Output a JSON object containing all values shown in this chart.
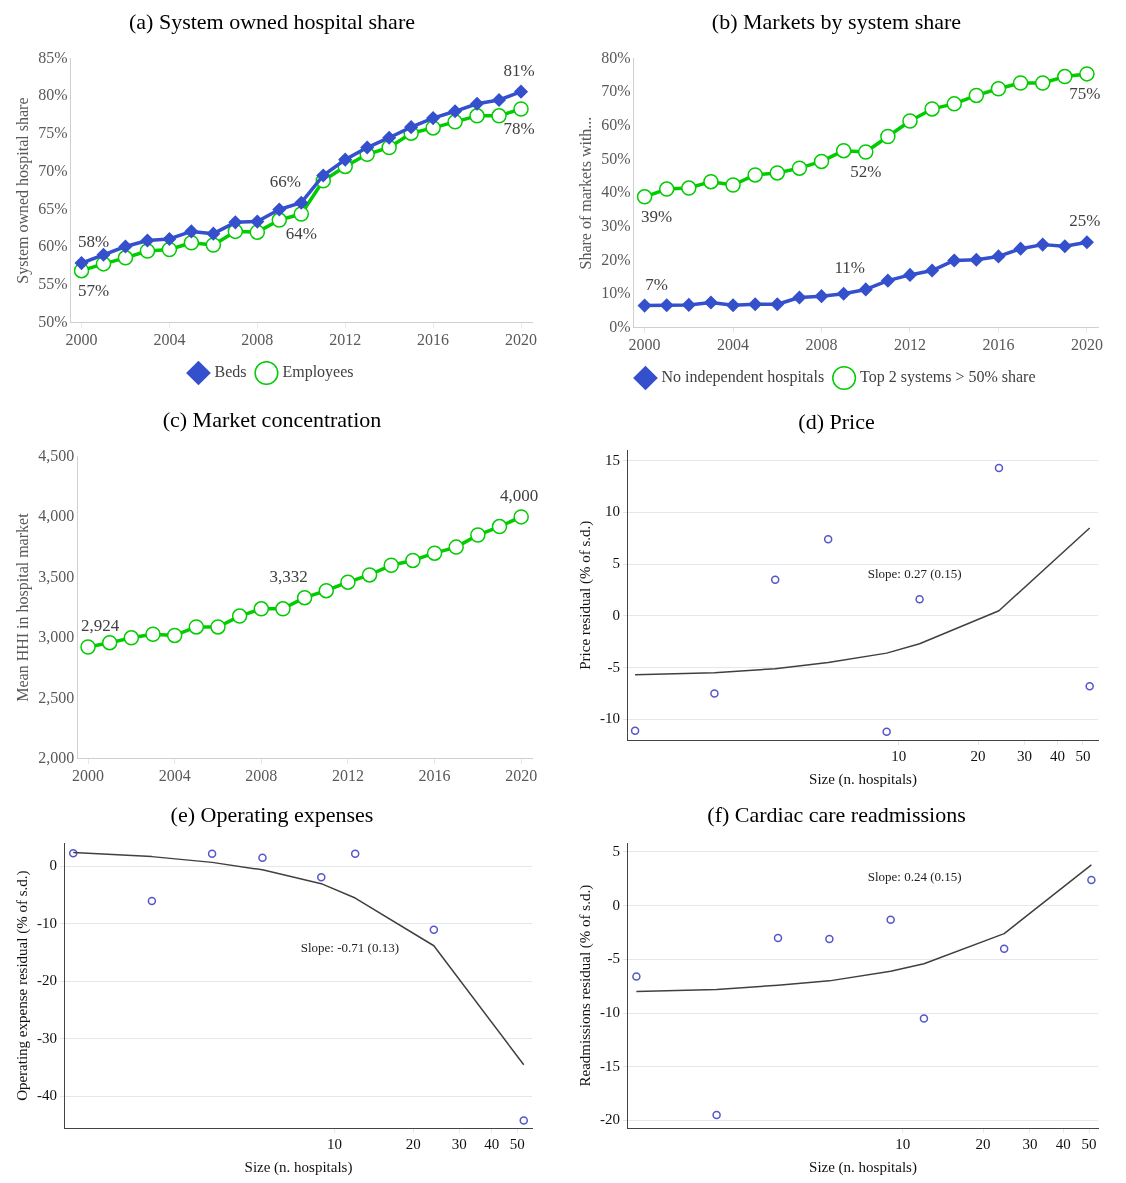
{
  "chart_data": [
    {
      "type": "line",
      "title": "(a) System owned hospital share",
      "ylabel": "System owned hospital share",
      "x": [
        2000,
        2001,
        2002,
        2003,
        2004,
        2005,
        2006,
        2007,
        2008,
        2009,
        2010,
        2011,
        2012,
        2013,
        2014,
        2015,
        2016,
        2017,
        2018,
        2019,
        2020
      ],
      "xlim": [
        1999.5,
        2020.5
      ],
      "xticks": [
        2000,
        2004,
        2008,
        2012,
        2016,
        2020
      ],
      "ylim": [
        50,
        85
      ],
      "yticks": [
        {
          "value": 50,
          "label": "50%"
        },
        {
          "value": 55,
          "label": "55%"
        },
        {
          "value": 60,
          "label": "60%"
        },
        {
          "value": 65,
          "label": "65%"
        },
        {
          "value": 70,
          "label": "70%"
        },
        {
          "value": 75,
          "label": "75%"
        },
        {
          "value": 80,
          "label": "80%"
        },
        {
          "value": 85,
          "label": "85%"
        }
      ],
      "grid": false,
      "legend": "bottom",
      "series": [
        {
          "name": "Beds",
          "color": "#3550cc",
          "marker": "diamond",
          "values": [
            57.9,
            59.0,
            60.1,
            60.9,
            61.1,
            62.1,
            61.8,
            63.3,
            63.4,
            65.0,
            65.9,
            69.5,
            71.6,
            73.2,
            74.5,
            75.9,
            77.1,
            78.0,
            79.0,
            79.5,
            80.6
          ],
          "value_labels": [
            "58%",
            null,
            null,
            null,
            null,
            null,
            null,
            null,
            null,
            null,
            "66%",
            null,
            null,
            null,
            null,
            null,
            null,
            null,
            null,
            null,
            "81%"
          ]
        },
        {
          "name": "Employees",
          "color": "#00cc00",
          "marker": "circle",
          "values": [
            56.9,
            57.8,
            58.6,
            59.5,
            59.7,
            60.6,
            60.3,
            62.1,
            62.0,
            63.6,
            64.4,
            68.8,
            70.7,
            72.3,
            73.2,
            75.1,
            75.8,
            76.6,
            77.4,
            77.4,
            78.3
          ],
          "value_labels": [
            "57%",
            null,
            null,
            null,
            null,
            null,
            null,
            null,
            null,
            null,
            "64%",
            null,
            null,
            null,
            null,
            null,
            null,
            null,
            null,
            null,
            "78%"
          ]
        }
      ]
    },
    {
      "type": "line",
      "title": "(b) Markets by system share",
      "ylabel": "Share of markets with...",
      "x": [
        2000,
        2001,
        2002,
        2003,
        2004,
        2005,
        2006,
        2007,
        2008,
        2009,
        2010,
        2011,
        2012,
        2013,
        2014,
        2015,
        2016,
        2017,
        2018,
        2019,
        2020
      ],
      "xlim": [
        1999.5,
        2020.5
      ],
      "xticks": [
        2000,
        2004,
        2008,
        2012,
        2016,
        2020
      ],
      "ylim": [
        0,
        80
      ],
      "yticks": [
        {
          "value": 0,
          "label": "0%"
        },
        {
          "value": 10,
          "label": "10%"
        },
        {
          "value": 20,
          "label": "20%"
        },
        {
          "value": 30,
          "label": "30%"
        },
        {
          "value": 40,
          "label": "40%"
        },
        {
          "value": 50,
          "label": "50%"
        },
        {
          "value": 60,
          "label": "60%"
        },
        {
          "value": 70,
          "label": "70%"
        },
        {
          "value": 80,
          "label": "80%"
        }
      ],
      "grid": false,
      "legend": "bottom",
      "series": [
        {
          "name": "No independent hospitals",
          "color": "#3550cc",
          "marker": "diamond",
          "values": [
            6.6,
            6.7,
            6.8,
            7.5,
            6.7,
            7.0,
            7.0,
            9.0,
            9.4,
            10.1,
            11.4,
            14.0,
            15.7,
            17.0,
            20.0,
            20.2,
            21.2,
            23.5,
            24.7,
            24.2,
            25.4
          ],
          "value_labels": [
            "7%",
            null,
            null,
            null,
            null,
            null,
            null,
            null,
            null,
            null,
            "11%",
            null,
            null,
            null,
            null,
            null,
            null,
            null,
            null,
            null,
            "25%"
          ]
        },
        {
          "name": "Top 2 systems > 50% share",
          "color": "#00cc00",
          "marker": "circle",
          "values": [
            38.9,
            41.2,
            41.5,
            43.4,
            42.4,
            45.4,
            46.0,
            47.4,
            49.4,
            52.6,
            52.2,
            56.8,
            61.4,
            65.0,
            66.5,
            69.0,
            71.0,
            72.7,
            72.7,
            74.6,
            75.4
          ],
          "value_labels": [
            "39%",
            null,
            null,
            null,
            null,
            null,
            null,
            null,
            null,
            null,
            "52%",
            null,
            null,
            null,
            null,
            null,
            null,
            null,
            null,
            null,
            "75%"
          ]
        }
      ]
    },
    {
      "type": "line",
      "title": "(c) Market concentration",
      "ylabel": "Mean HHI in hospital market",
      "x": [
        2000,
        2001,
        2002,
        2003,
        2004,
        2005,
        2006,
        2007,
        2008,
        2009,
        2010,
        2011,
        2012,
        2013,
        2014,
        2015,
        2016,
        2017,
        2018,
        2019,
        2020
      ],
      "xlim": [
        1999.5,
        2020.5
      ],
      "xticks": [
        2000,
        2004,
        2008,
        2012,
        2016,
        2020
      ],
      "ylim": [
        2000,
        4500
      ],
      "yticks": [
        {
          "value": 2000,
          "label": "2,000"
        },
        {
          "value": 2500,
          "label": "2,500"
        },
        {
          "value": 3000,
          "label": "3,000"
        },
        {
          "value": 3500,
          "label": "3,500"
        },
        {
          "value": 4000,
          "label": "4,000"
        },
        {
          "value": 4500,
          "label": "4,500"
        }
      ],
      "grid": false,
      "series": [
        {
          "color": "#00cc00",
          "marker": "circle",
          "values": [
            2924,
            2960,
            3000,
            3030,
            3020,
            3090,
            3090,
            3180,
            3240,
            3240,
            3332,
            3390,
            3460,
            3520,
            3600,
            3640,
            3700,
            3750,
            3850,
            3920,
            4000
          ],
          "value_labels": [
            "2,924",
            null,
            null,
            null,
            null,
            null,
            null,
            null,
            null,
            null,
            "3,332",
            null,
            null,
            null,
            null,
            null,
            null,
            null,
            null,
            null,
            "4,000"
          ]
        }
      ]
    },
    {
      "type": "scatter",
      "title": "(d) Price",
      "xlabel": "Size (n. hospitals)",
      "ylabel": "Price residual (% of s.d.)",
      "log": "x",
      "xlim": [
        0.94,
        57
      ],
      "xticks": [
        10,
        20,
        30,
        40,
        50
      ],
      "ylim": [
        -12,
        16
      ],
      "yticks": [
        -10,
        -5,
        0,
        5,
        10,
        15
      ],
      "grid": "y",
      "annotations": [
        "Slope: 0.27 (0.15)"
      ],
      "series": [
        {
          "type": "scatter",
          "color": "#5555cc",
          "marker": "circle",
          "x": [
            1,
            2,
            3.4,
            5.4,
            9,
            12,
            24,
            53
          ],
          "values": [
            -11.1,
            -7.5,
            3.5,
            7.4,
            -11.2,
            1.6,
            14.3,
            -6.8
          ]
        },
        {
          "type": "line",
          "color": "#404040",
          "marker": "none",
          "x": [
            1,
            2,
            3.4,
            5.4,
            9,
            12,
            24,
            53
          ],
          "values": [
            -5.7,
            -5.5,
            -5.1,
            -4.5,
            -3.6,
            -2.7,
            0.5,
            8.5
          ]
        }
      ]
    },
    {
      "type": "scatter",
      "title": "(e) Operating expenses",
      "xlabel": "Size (n. hospitals)",
      "ylabel": "Operating expense residual (% of s.d.)",
      "log": "x",
      "xlim": [
        0.93,
        57
      ],
      "xticks": [
        10,
        20,
        30,
        40,
        50
      ],
      "ylim": [
        -45.5,
        4
      ],
      "yticks": [
        -40,
        -30,
        -20,
        -10,
        0
      ],
      "grid": "y",
      "annotations": [
        "Slope: -0.71 (0.13)"
      ],
      "series": [
        {
          "type": "scatter",
          "color": "#5555cc",
          "marker": "circle",
          "x": [
            1,
            2,
            3.4,
            5.3,
            8.9,
            12,
            24,
            53
          ],
          "values": [
            2.3,
            -6.0,
            2.2,
            1.5,
            -1.9,
            2.2,
            -11.0,
            -44.2
          ]
        },
        {
          "type": "line",
          "color": "#404040",
          "marker": "none",
          "x": [
            1,
            2,
            3.4,
            5.3,
            8.9,
            12,
            24,
            53
          ],
          "values": [
            2.4,
            1.7,
            0.7,
            -0.6,
            -3.0,
            -5.5,
            -13.8,
            -34.5
          ]
        }
      ]
    },
    {
      "type": "scatter",
      "title": "(f) Cardiac care readmissions",
      "xlabel": "Size (n. hospitals)",
      "ylabel": "Readmissions residual (% of s.d.)",
      "log": "x",
      "xlim": [
        0.93,
        54
      ],
      "xticks": [
        10,
        20,
        30,
        40,
        50
      ],
      "ylim": [
        -20.7,
        5.8
      ],
      "yticks": [
        -20,
        -15,
        -10,
        -5,
        0,
        5
      ],
      "grid": "y",
      "annotations": [
        "Slope: 0.24 (0.15)"
      ],
      "series": [
        {
          "type": "scatter",
          "color": "#5555cc",
          "marker": "circle",
          "x": [
            1,
            2,
            3.4,
            5.3,
            9,
            12,
            24,
            51
          ],
          "values": [
            -6.6,
            -19.5,
            -3.0,
            -3.1,
            -1.3,
            -10.5,
            -4.0,
            2.4
          ]
        },
        {
          "type": "line",
          "color": "#404040",
          "marker": "none",
          "x": [
            1,
            2,
            3.4,
            5.3,
            9,
            12,
            24,
            51
          ],
          "values": [
            -8.0,
            -7.8,
            -7.4,
            -7.0,
            -6.1,
            -5.4,
            -2.6,
            3.8
          ]
        }
      ]
    }
  ]
}
